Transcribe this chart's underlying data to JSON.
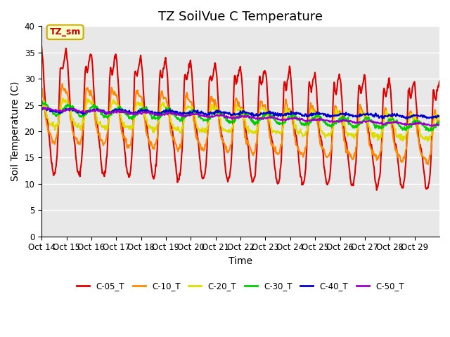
{
  "title": "TZ SoilVue C Temperature",
  "xlabel": "Time",
  "ylabel": "Soil Temperature (C)",
  "ylim": [
    0,
    40
  ],
  "yticks": [
    0,
    5,
    10,
    15,
    20,
    25,
    30,
    35,
    40
  ],
  "x_labels": [
    "Oct 14",
    "Oct 15",
    "Oct 16",
    "Oct 17",
    "Oct 18",
    "Oct 19",
    "Oct 20",
    "Oct 21",
    "Oct 22",
    "Oct 23",
    "Oct 24",
    "Oct 25",
    "Oct 26",
    "Oct 27",
    "Oct 28",
    "Oct 29"
  ],
  "annotation_text": "TZ_sm",
  "annotation_color": "#cc0000",
  "annotation_bg": "#ffffcc",
  "annotation_border": "#ccaa00",
  "series": {
    "C-05_T": {
      "color": "#dd0000",
      "lw": 1.5
    },
    "C-10_T": {
      "color": "#ff8800",
      "lw": 1.5
    },
    "C-20_T": {
      "color": "#dddd00",
      "lw": 1.5
    },
    "C-30_T": {
      "color": "#00cc00",
      "lw": 1.5
    },
    "C-40_T": {
      "color": "#0000cc",
      "lw": 1.5
    },
    "C-50_T": {
      "color": "#9900cc",
      "lw": 1.5
    }
  },
  "bg_color": "#e8e8e8",
  "grid_color": "#ffffff",
  "title_fontsize": 13,
  "axis_label_fontsize": 10,
  "tick_fontsize": 8.5
}
